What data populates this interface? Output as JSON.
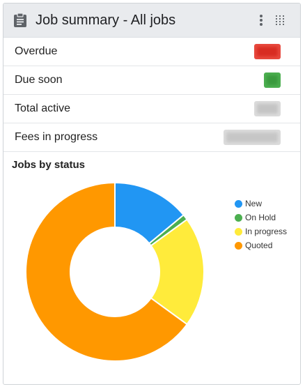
{
  "header": {
    "title": "Job summary - All jobs",
    "icons": {
      "title_icon": "clipboard-icon",
      "menu_icon": "kebab-menu-icon",
      "drag_icon": "drag-grid-icon"
    }
  },
  "summary_rows": [
    {
      "label": "Overdue",
      "badge_color": "#e84a3f"
    },
    {
      "label": "Due soon",
      "badge_color": "#4caf50"
    },
    {
      "label": "Total active",
      "badge_color": "#dcdcdc"
    },
    {
      "label": "Fees in progress",
      "badge_color": "#dcdcdc"
    }
  ],
  "chart": {
    "title": "Jobs by status"
  },
  "chart_data": {
    "type": "pie",
    "donut": true,
    "title": "Jobs by status",
    "legend_position": "right",
    "categories": [
      "New",
      "On Hold",
      "In progress",
      "Quoted"
    ],
    "values": [
      14,
      1,
      20,
      65
    ],
    "colors": [
      "#2196f3",
      "#4caf50",
      "#ffeb3b",
      "#ff9800"
    ]
  },
  "colors": {
    "header_bg": "#e9ebee",
    "border": "#cfd3d7"
  }
}
